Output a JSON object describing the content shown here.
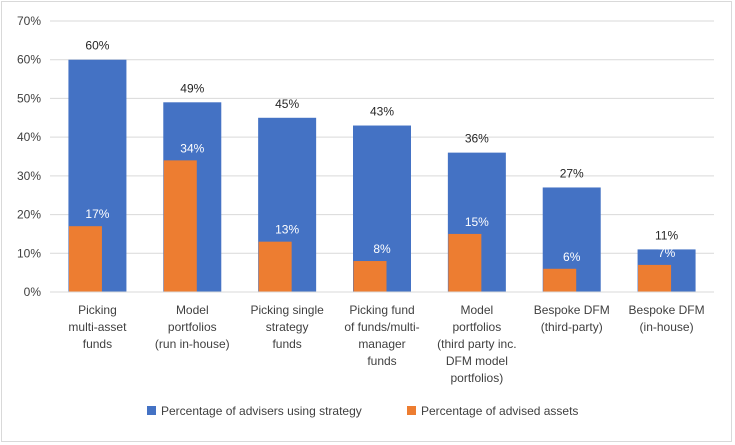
{
  "chart_data": {
    "type": "bar",
    "title": "",
    "xlabel": "",
    "ylabel": "",
    "ylim": [
      0,
      70
    ],
    "yticks": [
      "0%",
      "10%",
      "20%",
      "30%",
      "40%",
      "50%",
      "60%",
      "70%"
    ],
    "grid": true,
    "legend_position": "bottom",
    "categories": [
      [
        "Picking",
        "multi-asset",
        "funds"
      ],
      [
        "Model",
        "portfolios",
        "(run in-house)"
      ],
      [
        "Picking single",
        "strategy",
        "funds"
      ],
      [
        "Picking fund",
        "of funds/multi-",
        "manager",
        "funds"
      ],
      [
        "Model",
        "portfolios",
        "(third party inc.",
        "DFM model",
        "portfolios)"
      ],
      [
        "Bespoke DFM",
        "(third-party)"
      ],
      [
        "Bespoke DFM",
        "(in-house)"
      ]
    ],
    "series": [
      {
        "name": "Percentage of advisers using strategy",
        "color": "#4472c4",
        "values": [
          60,
          49,
          45,
          43,
          36,
          27,
          11
        ],
        "labels": [
          "60%",
          "49%",
          "45%",
          "43%",
          "36%",
          "27%",
          "11%"
        ]
      },
      {
        "name": "Percentage of advised assets",
        "color": "#ed7d31",
        "values": [
          17,
          34,
          13,
          8,
          15,
          6,
          7
        ],
        "labels": [
          "17%",
          "34%",
          "13%",
          "8%",
          "15%",
          "6%",
          "7%"
        ]
      }
    ]
  }
}
